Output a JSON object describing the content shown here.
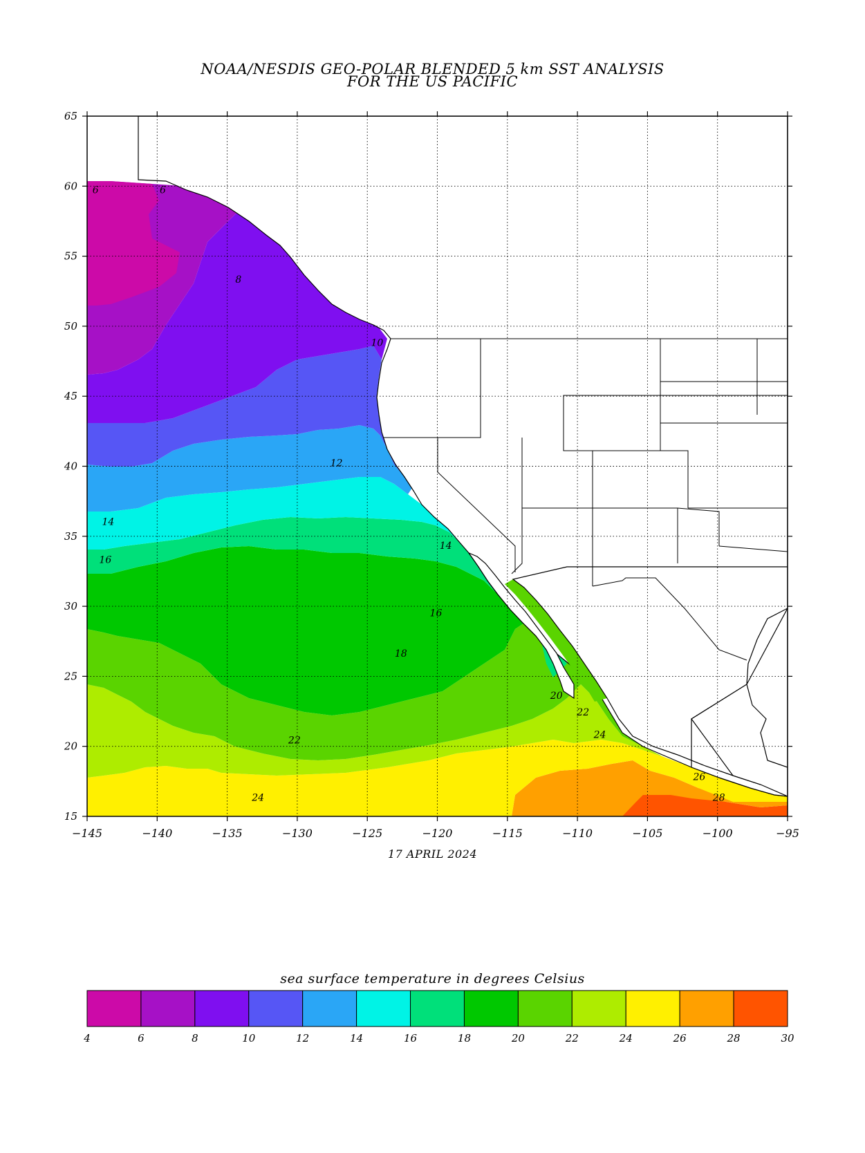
{
  "title_line1": "NOAA/NESDIS GEO-POLAR BLENDED 5 km SST ANALYSIS",
  "title_line2": "FOR THE US PACIFIC",
  "date": "17 APRIL 2024",
  "lat_ticks": [
    "15",
    "20",
    "25",
    "30",
    "35",
    "40",
    "45",
    "50",
    "55",
    "60",
    "65"
  ],
  "lon_ticks": [
    "-145",
    "-140",
    "-135",
    "-130",
    "-125",
    "-120",
    "-115",
    "-110",
    "-105",
    "-100",
    "-95"
  ],
  "colorbar": {
    "title": "sea surface temperature in degrees Celsius",
    "ticks": [
      "4",
      "6",
      "8",
      "10",
      "12",
      "14",
      "16",
      "18",
      "20",
      "22",
      "24",
      "26",
      "28",
      "30"
    ],
    "colors": [
      "#cc0aa8",
      "#a611c6",
      "#7f0ff0",
      "#5656f5",
      "#2aa6f6",
      "#00f3e6",
      "#00e07a",
      "#00c800",
      "#5ad400",
      "#aeec00",
      "#fff000",
      "#ffa000",
      "#ff5400"
    ]
  },
  "contour_labels": [
    {
      "text": "6",
      "lon": -144.4,
      "lat": 59.5
    },
    {
      "text": "6",
      "lon": -139.6,
      "lat": 59.5
    },
    {
      "text": "8",
      "lon": -134.2,
      "lat": 53.1
    },
    {
      "text": "10",
      "lon": -124.3,
      "lat": 48.6
    },
    {
      "text": "12",
      "lon": -127.2,
      "lat": 40.0
    },
    {
      "text": "14",
      "lon": -143.5,
      "lat": 35.8
    },
    {
      "text": "16",
      "lon": -143.7,
      "lat": 33.1
    },
    {
      "text": "14",
      "lon": -119.4,
      "lat": 34.1
    },
    {
      "text": "16",
      "lon": -120.1,
      "lat": 29.3
    },
    {
      "text": "18",
      "lon": -122.6,
      "lat": 26.4
    },
    {
      "text": "20",
      "lon": -111.5,
      "lat": 23.4
    },
    {
      "text": "22",
      "lon": -109.6,
      "lat": 22.2
    },
    {
      "text": "22",
      "lon": -130.2,
      "lat": 20.2
    },
    {
      "text": "24",
      "lon": -108.4,
      "lat": 20.6
    },
    {
      "text": "24",
      "lon": -132.8,
      "lat": 16.1
    },
    {
      "text": "26",
      "lon": -101.3,
      "lat": 17.6
    },
    {
      "text": "28",
      "lon": -99.9,
      "lat": 16.1
    }
  ]
}
